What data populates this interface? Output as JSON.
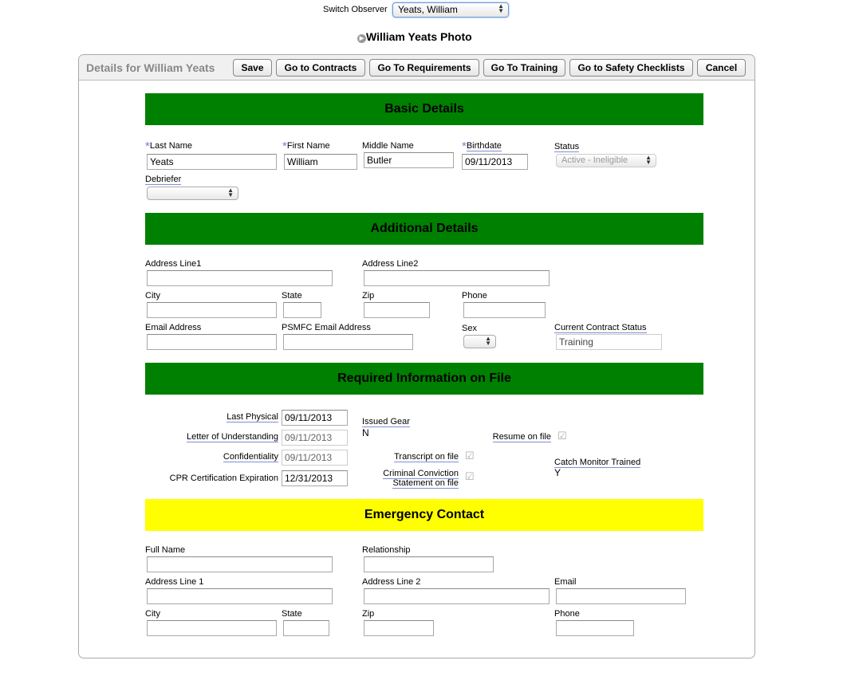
{
  "top": {
    "switch_label": "Switch Observer",
    "switch_value": "Yeats, William",
    "photo_label": "William Yeats Photo"
  },
  "panel": {
    "title": "Details for William Yeats",
    "buttons": [
      "Save",
      "Go to Contracts",
      "Go To Requirements",
      "Go To Training",
      "Go to Safety Checklists",
      "Cancel"
    ]
  },
  "basic": {
    "title": "Basic Details",
    "last_name_label": "Last Name",
    "last_name": "Yeats",
    "first_name_label": "First Name",
    "first_name": "William",
    "middle_name_label": "Middle Name",
    "middle_name": "Butler",
    "birthdate_label": "Birthdate",
    "birthdate": "09/11/2013",
    "status_label": "Status",
    "status": "Active - Ineligible",
    "debriefer_label": "Debriefer",
    "debriefer": ""
  },
  "additional": {
    "title": "Additional Details",
    "address1_label": "Address Line1",
    "address2_label": "Address Line2",
    "city_label": "City",
    "state_label": "State",
    "zip_label": "Zip",
    "phone_label": "Phone",
    "email_label": "Email Address",
    "psmfc_email_label": "PSMFC Email Address",
    "sex_label": "Sex",
    "contract_status_label": "Current Contract Status",
    "contract_status": "Training"
  },
  "required": {
    "title": "Required Information on File",
    "last_physical_label": "Last Physical",
    "last_physical": "09/11/2013",
    "lou_label": "Letter of Understanding",
    "lou": "09/11/2013",
    "confidentiality_label": "Confidentiality",
    "confidentiality": "09/11/2013",
    "cpr_label": "CPR Certification Expiration",
    "cpr": "12/31/2013",
    "issued_gear_label": "Issued Gear",
    "issued_gear": "N",
    "transcript_label": "Transcript on file",
    "criminal_label_1": "Criminal Conviction",
    "criminal_label_2": "Statement on file",
    "resume_label": "Resume on file",
    "catch_monitor_label": "Catch Monitor Trained",
    "catch_monitor": "Y"
  },
  "emergency": {
    "title": "Emergency Contact",
    "full_name_label": "Full Name",
    "relationship_label": "Relationship",
    "address1_label": "Address Line 1",
    "address2_label": "Address Line 2",
    "email_label": "Email",
    "city_label": "City",
    "state_label": "State",
    "zip_label": "Zip",
    "phone_label": "Phone"
  },
  "colors": {
    "section_green": "#008000",
    "section_yellow": "#ffff00"
  }
}
